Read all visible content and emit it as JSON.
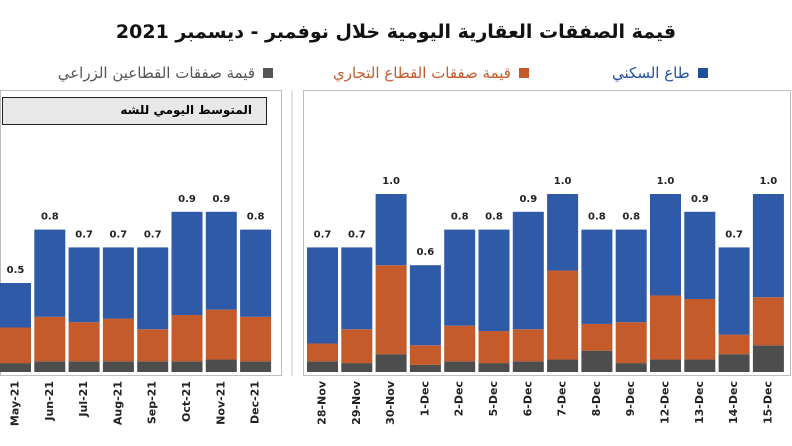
{
  "title": "قيمة الصفقات العقارية اليومية خلال نوفمبر - ديسمبر 2021",
  "legend": {
    "residential": "طاع السكني",
    "commercial": "قيمة صفقات القطاع التجاري",
    "agricultural": "قيمة صفقات القطاعين الزراعي"
  },
  "average_box_label": "المتوسط اليومي للشه",
  "colors": {
    "residential": "#2e5aa8",
    "commercial": "#c55a2b",
    "agricultural": "#4d4d4d",
    "residential_legend": "#1f4f9e",
    "commercial_legend": "#c55a2b",
    "agricultural_legend": "#555555"
  },
  "chart_data": [
    {
      "type": "bar",
      "stacked": true,
      "panel": "monthly-average",
      "categories": [
        "May-21",
        "Jun-21",
        "Jul-21",
        "Aug-21",
        "Sep-21",
        "Oct-21",
        "Nov-21",
        "Dec-21"
      ],
      "totals": [
        0.5,
        0.8,
        0.7,
        0.7,
        0.7,
        0.9,
        0.9,
        0.8
      ],
      "total_labels": [
        "0.5",
        "0.8",
        "0.7",
        "0.7",
        "0.7",
        "0.9",
        "0.9",
        "0.8"
      ],
      "series": [
        {
          "key": "agricultural",
          "values": [
            0.05,
            0.06,
            0.06,
            0.06,
            0.06,
            0.06,
            0.07,
            0.06
          ]
        },
        {
          "key": "commercial",
          "values": [
            0.2,
            0.25,
            0.22,
            0.24,
            0.18,
            0.26,
            0.28,
            0.25
          ]
        },
        {
          "key": "residential",
          "values": [
            0.25,
            0.49,
            0.42,
            0.4,
            0.46,
            0.58,
            0.55,
            0.49
          ]
        }
      ],
      "ylim": [
        0,
        1.2
      ]
    },
    {
      "type": "bar",
      "stacked": true,
      "panel": "daily",
      "categories": [
        "28-Nov",
        "29-Nov",
        "30-Nov",
        "1-Dec",
        "2-Dec",
        "5-Dec",
        "6-Dec",
        "7-Dec",
        "8-Dec",
        "9-Dec",
        "12-Dec",
        "13-Dec",
        "14-Dec",
        "15-Dec"
      ],
      "totals": [
        0.7,
        0.7,
        1.0,
        0.6,
        0.8,
        0.8,
        0.9,
        1.0,
        0.8,
        0.8,
        1.0,
        0.9,
        0.7,
        1.0
      ],
      "total_labels": [
        "0.7",
        "0.7",
        "1.0",
        "0.6",
        "0.8",
        "0.8",
        "0.9",
        "1.0",
        "0.8",
        "0.8",
        "1.0",
        "0.9",
        "0.7",
        "1.0"
      ],
      "series": [
        {
          "key": "agricultural",
          "values": [
            0.06,
            0.05,
            0.1,
            0.04,
            0.06,
            0.05,
            0.06,
            0.07,
            0.12,
            0.05,
            0.07,
            0.07,
            0.1,
            0.15
          ]
        },
        {
          "key": "commercial",
          "values": [
            0.1,
            0.19,
            0.5,
            0.11,
            0.2,
            0.18,
            0.18,
            0.5,
            0.15,
            0.23,
            0.36,
            0.34,
            0.11,
            0.27
          ]
        },
        {
          "key": "residential",
          "values": [
            0.54,
            0.46,
            0.4,
            0.45,
            0.54,
            0.57,
            0.66,
            0.43,
            0.53,
            0.52,
            0.57,
            0.49,
            0.49,
            0.58
          ]
        }
      ],
      "ylim": [
        0,
        1.2
      ]
    }
  ]
}
